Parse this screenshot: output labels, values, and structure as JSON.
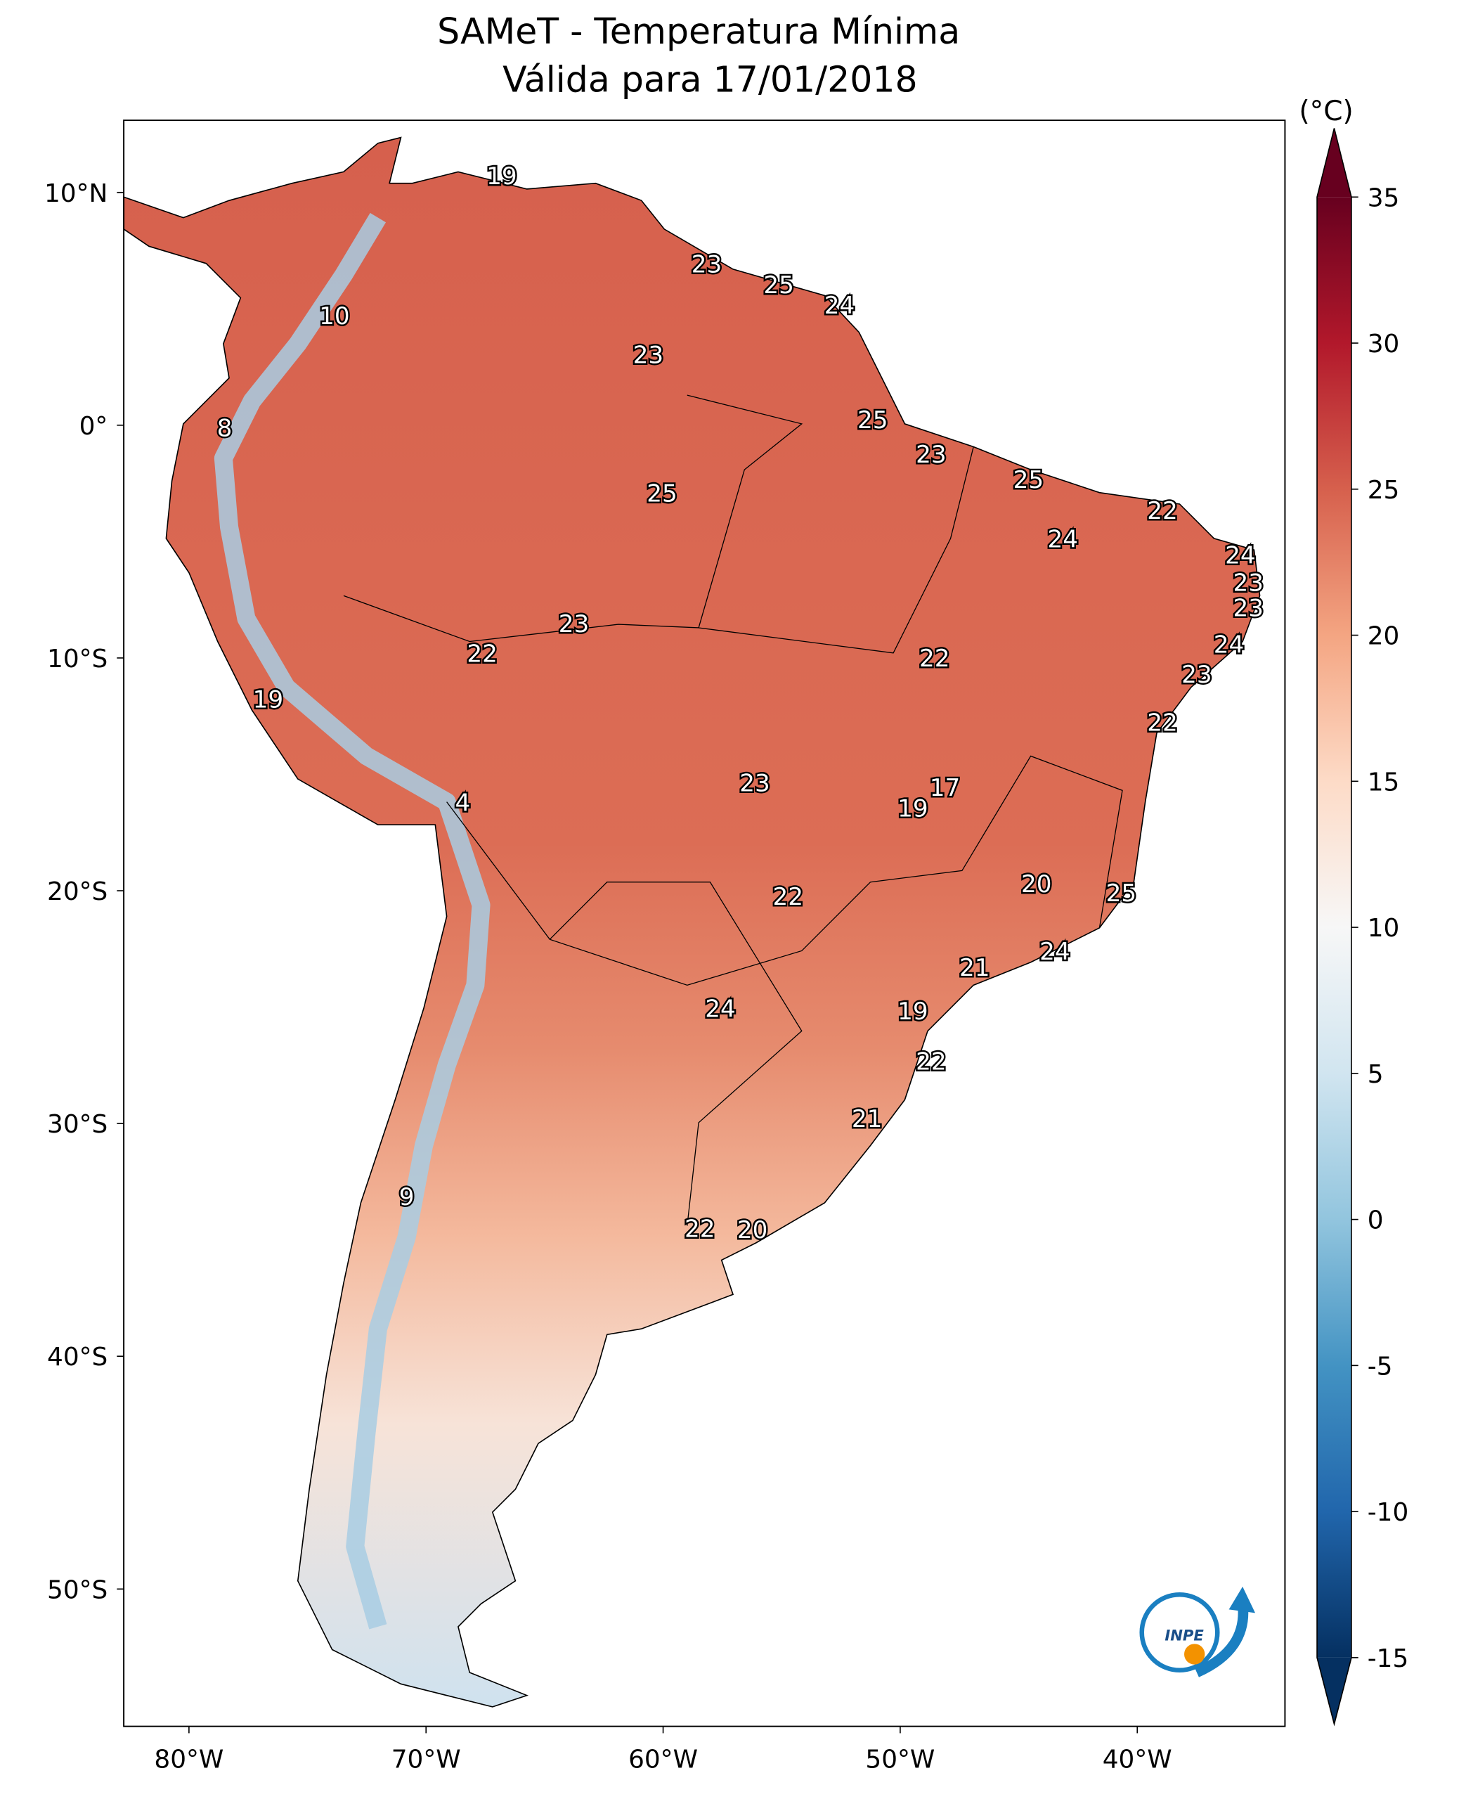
{
  "chart_data": {
    "type": "map",
    "title": "SAMeT - Temperatura Mínima",
    "subtitle": "Válida para 17/01/2018",
    "xlim": [
      -82.75,
      -33.77
    ],
    "ylim": [
      -55.9,
      13.1
    ],
    "xticks": [
      {
        "value": -80,
        "label": "80°W"
      },
      {
        "value": -70,
        "label": "70°W"
      },
      {
        "value": -60,
        "label": "60°W"
      },
      {
        "value": -50,
        "label": "50°W"
      },
      {
        "value": -40,
        "label": "40°W"
      }
    ],
    "yticks": [
      {
        "value": 10,
        "label": "10°N"
      },
      {
        "value": 0,
        "label": "0°"
      },
      {
        "value": -10,
        "label": "10°S"
      },
      {
        "value": -20,
        "label": "20°S"
      },
      {
        "value": -30,
        "label": "30°S"
      },
      {
        "value": -40,
        "label": "40°S"
      },
      {
        "value": -50,
        "label": "50°S"
      }
    ],
    "colorbar": {
      "label": "(°C)",
      "clim": [
        -15,
        35
      ],
      "ticks": [
        -15,
        -10,
        -5,
        0,
        5,
        10,
        15,
        20,
        25,
        30,
        35
      ],
      "colormap": "RdBu_r"
    },
    "contour_labels": [
      19,
      10,
      8,
      23,
      25,
      24,
      23,
      25,
      23,
      25,
      22,
      24,
      24,
      23,
      23,
      25,
      23,
      22,
      22,
      24,
      23,
      22,
      19,
      4,
      23,
      17,
      19,
      20,
      25,
      22,
      24,
      21,
      24,
      19,
      22,
      21,
      9,
      22,
      20
    ],
    "logo_text": "INPE"
  }
}
